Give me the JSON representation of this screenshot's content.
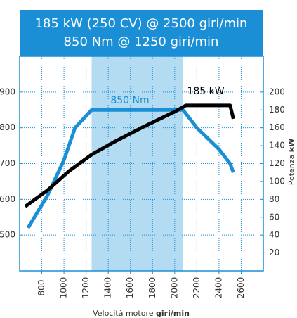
{
  "chart_data": {
    "type": "line",
    "title": [
      "185 kW (250 CV) @ 2500 giri/min",
      "850 Nm @ 1250 giri/min"
    ],
    "x_label": {
      "text": "Velocità motore",
      "unit": "giri/min"
    },
    "y2_label": {
      "text": "Potenza",
      "unit": "kW"
    },
    "xlim": [
      600,
      2800
    ],
    "xticks": [
      800,
      1000,
      1200,
      1400,
      1600,
      1800,
      2000,
      2200,
      2400,
      2600
    ],
    "ylim": [
      400,
      1000
    ],
    "yticks": [
      500,
      600,
      700,
      800,
      900
    ],
    "y2lim": [
      0,
      240
    ],
    "y2ticks": [
      20,
      40,
      60,
      80,
      100,
      120,
      140,
      160,
      180,
      200
    ],
    "grid": true,
    "band": [
      1250,
      2075
    ],
    "series": [
      {
        "name": "850 Nm",
        "color": "#1a8fd6",
        "axis": "y",
        "x": [
          675,
          850,
          1000,
          1100,
          1250,
          2075,
          2200,
          2400,
          2500,
          2530
        ],
        "values": [
          520,
          610,
          710,
          800,
          850,
          850,
          800,
          740,
          700,
          675
        ]
      },
      {
        "name": "185 kW",
        "color": "#000000",
        "axis": "y2",
        "x": [
          650,
          850,
          1050,
          1250,
          1450,
          1700,
          2000,
          2100,
          2500,
          2530
        ],
        "values": [
          72,
          90,
          112,
          130,
          144,
          160,
          178,
          185,
          185,
          170
        ]
      }
    ]
  }
}
